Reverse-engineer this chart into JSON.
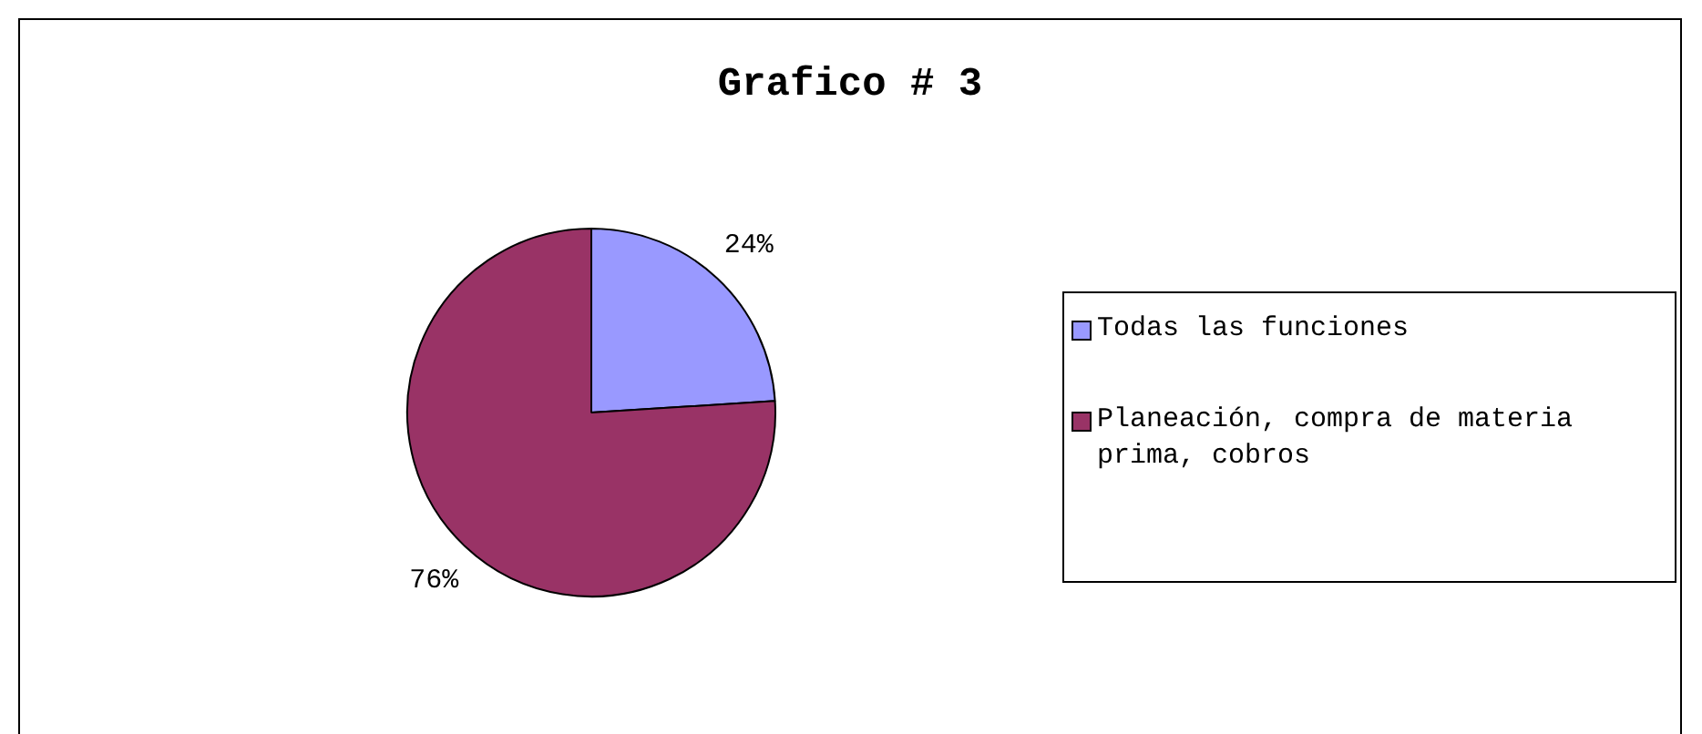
{
  "chart_data": {
    "type": "pie",
    "title": "Grafico # 3",
    "categories": [
      "Todas las funciones",
      "Planeación, compra de materia prima, cobros"
    ],
    "values": [
      24,
      76
    ],
    "colors": [
      "#9999ff",
      "#993366"
    ],
    "value_labels": [
      "24%",
      "76%"
    ],
    "legend": "right"
  }
}
